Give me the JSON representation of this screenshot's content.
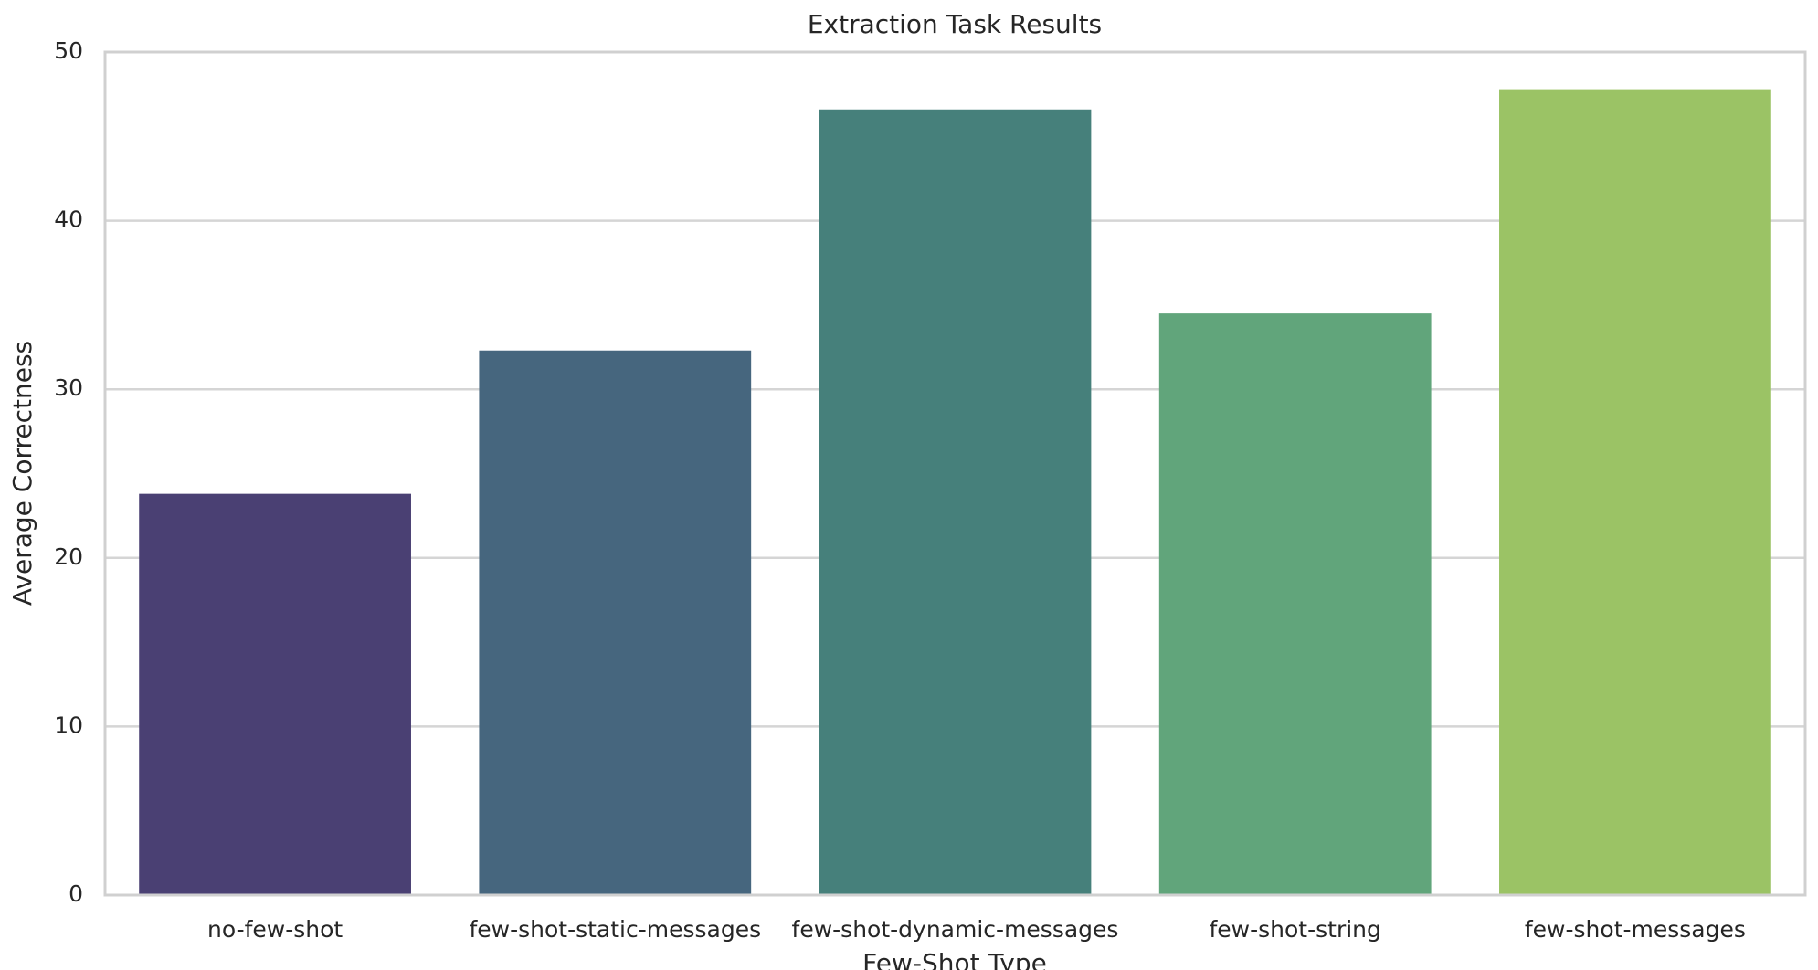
{
  "chart_data": {
    "type": "bar",
    "title": "Extraction Task Results",
    "x_label": "Few-Shot Type",
    "y_label": "Average Correctness",
    "categories": [
      "no-few-shot",
      "few-shot-static-messages",
      "few-shot-dynamic-messages",
      "few-shot-string",
      "few-shot-messages"
    ],
    "values": [
      23.8,
      32.3,
      46.6,
      34.5,
      47.8
    ],
    "colors": [
      "#4a4073",
      "#46667e",
      "#46807b",
      "#61a57b",
      "#9bc365"
    ],
    "ylim": [
      0,
      50
    ],
    "yticks": [
      0,
      10,
      20,
      30,
      40,
      50
    ],
    "grid": true
  }
}
